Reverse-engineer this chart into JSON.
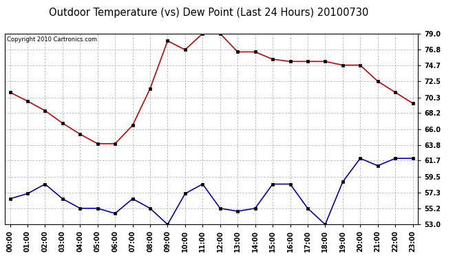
{
  "title": "Outdoor Temperature (vs) Dew Point (Last 24 Hours) 20100730",
  "copyright": "Copyright 2010 Cartronics.com",
  "x_labels": [
    "00:00",
    "01:00",
    "02:00",
    "03:00",
    "04:00",
    "05:00",
    "06:00",
    "07:00",
    "08:00",
    "09:00",
    "10:00",
    "11:00",
    "12:00",
    "13:00",
    "14:00",
    "15:00",
    "16:00",
    "17:00",
    "18:00",
    "19:00",
    "20:00",
    "21:00",
    "22:00",
    "23:00"
  ],
  "temp_values": [
    71.0,
    69.8,
    68.5,
    66.8,
    65.3,
    64.0,
    64.0,
    66.5,
    71.5,
    78.0,
    76.8,
    79.0,
    79.0,
    76.5,
    76.5,
    75.5,
    75.2,
    75.2,
    75.2,
    74.7,
    74.7,
    72.5,
    71.0,
    69.5
  ],
  "dew_values": [
    56.5,
    57.2,
    58.5,
    56.5,
    55.2,
    55.2,
    54.5,
    56.5,
    55.2,
    53.0,
    57.2,
    58.5,
    55.2,
    54.8,
    55.2,
    58.5,
    58.5,
    55.2,
    53.0,
    58.8,
    62.0,
    61.0,
    62.0,
    62.0
  ],
  "temp_color": "#cc0000",
  "dew_color": "#0000cc",
  "ylim_min": 53.0,
  "ylim_max": 79.0,
  "yticks": [
    53.0,
    55.2,
    57.3,
    59.5,
    61.7,
    63.8,
    66.0,
    68.2,
    70.3,
    72.5,
    74.7,
    76.8,
    79.0
  ],
  "bg_color": "#ffffff",
  "plot_bg_color": "#ffffff",
  "grid_color": "#bbbbbb",
  "title_fontsize": 10.5,
  "copyright_fontsize": 6,
  "tick_fontsize": 7,
  "marker_size": 3
}
